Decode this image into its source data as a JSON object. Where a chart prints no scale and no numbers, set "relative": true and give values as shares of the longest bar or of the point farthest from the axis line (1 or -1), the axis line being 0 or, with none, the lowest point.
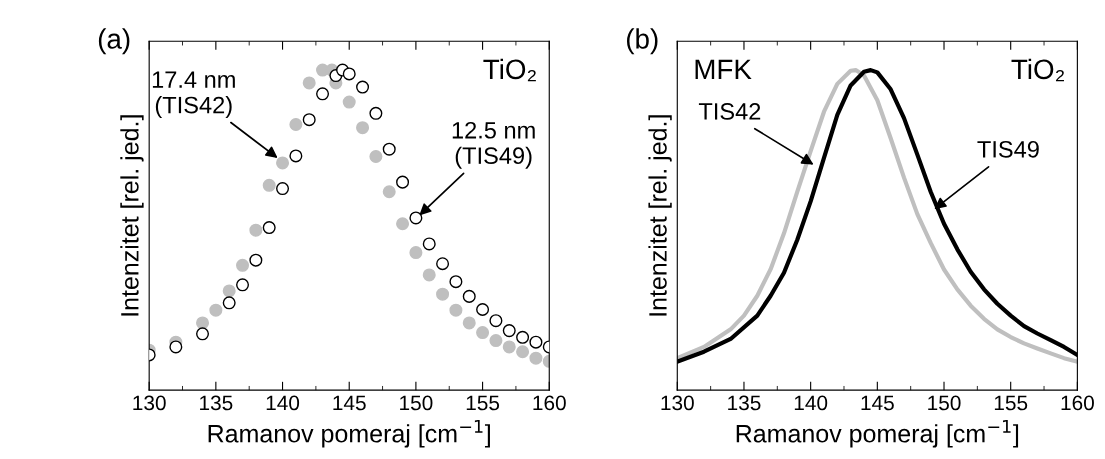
{
  "chart_data": [
    {
      "type": "scatter",
      "title": "(a)",
      "xlabel": "Ramanov pomeraj [cm$^{−1}$]",
      "ylabel": "Intenzitet [rel. jed.]",
      "relative": true,
      "marker": "circle",
      "xlim": [
        130,
        160
      ],
      "xticks": [
        130,
        135,
        140,
        145,
        150,
        155,
        160
      ],
      "series": [
        {
          "color": "#bfbfbf",
          "x": [
            130,
            132,
            134,
            135,
            136,
            137,
            138,
            139,
            140,
            141,
            142,
            143,
            143.7,
            144,
            145,
            146,
            147,
            148,
            149,
            150,
            151,
            152,
            153,
            154,
            155,
            156,
            157,
            158,
            159,
            160
          ],
          "values": [
            0.125,
            0.15,
            0.21,
            0.25,
            0.31,
            0.39,
            0.5,
            0.64,
            0.71,
            0.83,
            0.96,
            1.0,
            1.0,
            0.96,
            0.9,
            0.82,
            0.73,
            0.62,
            0.52,
            0.43,
            0.36,
            0.3,
            0.25,
            0.21,
            0.18,
            0.155,
            0.135,
            0.12,
            0.1,
            0.09
          ]
        },
        {
          "color": "#000000",
          "x": [
            130,
            132,
            134,
            136,
            137,
            138,
            139,
            140,
            141,
            142,
            143,
            144,
            144.5,
            145,
            146,
            147,
            148,
            149,
            150,
            151,
            152,
            153,
            154,
            155,
            156,
            157,
            158,
            159,
            160
          ],
          "values": [
            0.11,
            0.135,
            0.176,
            0.273,
            0.329,
            0.406,
            0.508,
            0.63,
            0.732,
            0.845,
            0.926,
            0.983,
            1.0,
            0.988,
            0.947,
            0.865,
            0.753,
            0.65,
            0.538,
            0.457,
            0.395,
            0.339,
            0.293,
            0.252,
            0.217,
            0.186,
            0.165,
            0.15,
            0.135
          ]
        }
      ],
      "annotations": [
        "TiO₂",
        {
          "text": "17.4 nm\n(TIS42)",
          "x": 139.8,
          "y": 0.72
        },
        {
          "text": "12.5 nm\n(TIS49)",
          "x": 150.1,
          "y": 0.54
        }
      ]
    },
    {
      "type": "line",
      "title": "(b)",
      "xlabel": "Ramanov pomeraj [cm$^{−1}$]",
      "ylabel": "Intenzitet [rel. jed.]",
      "relative": true,
      "line_style": "solid",
      "xlim": [
        130,
        160
      ],
      "xticks": [
        130,
        135,
        140,
        145,
        150,
        155,
        160
      ],
      "series": [
        {
          "color": "#bfbfbf",
          "x": [
            130,
            132,
            134,
            135,
            136,
            137,
            138,
            139,
            140,
            141,
            142,
            143,
            143.4,
            144,
            145,
            146,
            147,
            148,
            149,
            150,
            151,
            152,
            153,
            154,
            155,
            156,
            157,
            158,
            159,
            160
          ],
          "values": [
            0.1,
            0.135,
            0.19,
            0.233,
            0.295,
            0.378,
            0.49,
            0.62,
            0.747,
            0.87,
            0.957,
            0.998,
            1.0,
            0.983,
            0.906,
            0.787,
            0.664,
            0.55,
            0.46,
            0.377,
            0.315,
            0.264,
            0.223,
            0.19,
            0.166,
            0.146,
            0.13,
            0.115,
            0.1,
            0.089
          ]
        },
        {
          "color": "#000000",
          "x": [
            130,
            132,
            134,
            136,
            137,
            138,
            139,
            140,
            141,
            142,
            143,
            144,
            144.5,
            145,
            146,
            147,
            148,
            149,
            150,
            151,
            152,
            153,
            154,
            155,
            156,
            157,
            158,
            159,
            160
          ],
          "values": [
            0.089,
            0.12,
            0.16,
            0.233,
            0.295,
            0.367,
            0.47,
            0.59,
            0.726,
            0.86,
            0.952,
            0.995,
            1.0,
            0.993,
            0.94,
            0.85,
            0.736,
            0.62,
            0.52,
            0.44,
            0.37,
            0.315,
            0.27,
            0.233,
            0.2,
            0.177,
            0.156,
            0.135,
            0.11
          ]
        }
      ],
      "annotations": [
        "TiO₂",
        "MFK",
        {
          "text": "TIS42",
          "x": 140.4,
          "y": 0.7
        },
        {
          "text": "TIS49",
          "x": 149.1,
          "y": 0.56
        }
      ]
    }
  ]
}
